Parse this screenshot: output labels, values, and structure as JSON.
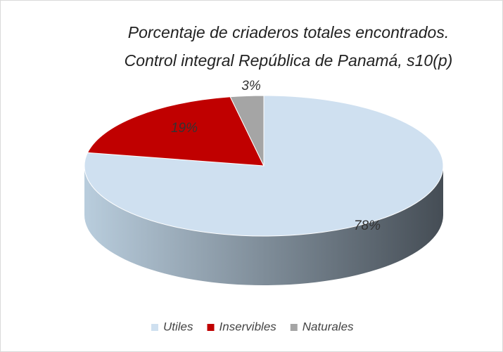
{
  "chart_data": {
    "type": "pie",
    "title": [
      "Porcentaje de criaderos totales encontrados.",
      "Control integral República de Panamá, s10(p)"
    ],
    "categories": [
      "Utiles",
      "Inservibles",
      "Naturales"
    ],
    "values": [
      78,
      19,
      3
    ],
    "value_labels": [
      "78%",
      "19%",
      "3%"
    ],
    "colors": [
      "#cfe0f0",
      "#c00000",
      "#a5a5a5"
    ],
    "legend": "bottom"
  }
}
